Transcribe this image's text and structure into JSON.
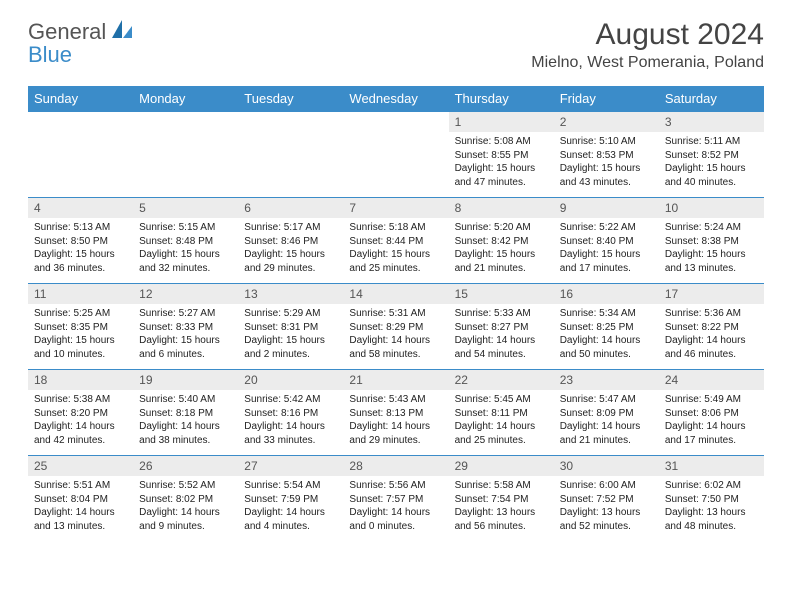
{
  "logo": {
    "text1": "General",
    "text2": "Blue"
  },
  "title": "August 2024",
  "location": "Mielno, West Pomerania, Poland",
  "colors": {
    "header_bg": "#3b8cc9",
    "header_text": "#ffffff",
    "daynum_bg": "#ececec",
    "daynum_text": "#555555",
    "body_text": "#222222",
    "rule": "#3b8cc9",
    "logo_general": "#555555",
    "logo_blue": "#3b8cc9"
  },
  "weekdays": [
    "Sunday",
    "Monday",
    "Tuesday",
    "Wednesday",
    "Thursday",
    "Friday",
    "Saturday"
  ],
  "weeks": [
    [
      {
        "num": "",
        "lines": []
      },
      {
        "num": "",
        "lines": []
      },
      {
        "num": "",
        "lines": []
      },
      {
        "num": "",
        "lines": []
      },
      {
        "num": "1",
        "lines": [
          "Sunrise: 5:08 AM",
          "Sunset: 8:55 PM",
          "Daylight: 15 hours",
          "and 47 minutes."
        ]
      },
      {
        "num": "2",
        "lines": [
          "Sunrise: 5:10 AM",
          "Sunset: 8:53 PM",
          "Daylight: 15 hours",
          "and 43 minutes."
        ]
      },
      {
        "num": "3",
        "lines": [
          "Sunrise: 5:11 AM",
          "Sunset: 8:52 PM",
          "Daylight: 15 hours",
          "and 40 minutes."
        ]
      }
    ],
    [
      {
        "num": "4",
        "lines": [
          "Sunrise: 5:13 AM",
          "Sunset: 8:50 PM",
          "Daylight: 15 hours",
          "and 36 minutes."
        ]
      },
      {
        "num": "5",
        "lines": [
          "Sunrise: 5:15 AM",
          "Sunset: 8:48 PM",
          "Daylight: 15 hours",
          "and 32 minutes."
        ]
      },
      {
        "num": "6",
        "lines": [
          "Sunrise: 5:17 AM",
          "Sunset: 8:46 PM",
          "Daylight: 15 hours",
          "and 29 minutes."
        ]
      },
      {
        "num": "7",
        "lines": [
          "Sunrise: 5:18 AM",
          "Sunset: 8:44 PM",
          "Daylight: 15 hours",
          "and 25 minutes."
        ]
      },
      {
        "num": "8",
        "lines": [
          "Sunrise: 5:20 AM",
          "Sunset: 8:42 PM",
          "Daylight: 15 hours",
          "and 21 minutes."
        ]
      },
      {
        "num": "9",
        "lines": [
          "Sunrise: 5:22 AM",
          "Sunset: 8:40 PM",
          "Daylight: 15 hours",
          "and 17 minutes."
        ]
      },
      {
        "num": "10",
        "lines": [
          "Sunrise: 5:24 AM",
          "Sunset: 8:38 PM",
          "Daylight: 15 hours",
          "and 13 minutes."
        ]
      }
    ],
    [
      {
        "num": "11",
        "lines": [
          "Sunrise: 5:25 AM",
          "Sunset: 8:35 PM",
          "Daylight: 15 hours",
          "and 10 minutes."
        ]
      },
      {
        "num": "12",
        "lines": [
          "Sunrise: 5:27 AM",
          "Sunset: 8:33 PM",
          "Daylight: 15 hours",
          "and 6 minutes."
        ]
      },
      {
        "num": "13",
        "lines": [
          "Sunrise: 5:29 AM",
          "Sunset: 8:31 PM",
          "Daylight: 15 hours",
          "and 2 minutes."
        ]
      },
      {
        "num": "14",
        "lines": [
          "Sunrise: 5:31 AM",
          "Sunset: 8:29 PM",
          "Daylight: 14 hours",
          "and 58 minutes."
        ]
      },
      {
        "num": "15",
        "lines": [
          "Sunrise: 5:33 AM",
          "Sunset: 8:27 PM",
          "Daylight: 14 hours",
          "and 54 minutes."
        ]
      },
      {
        "num": "16",
        "lines": [
          "Sunrise: 5:34 AM",
          "Sunset: 8:25 PM",
          "Daylight: 14 hours",
          "and 50 minutes."
        ]
      },
      {
        "num": "17",
        "lines": [
          "Sunrise: 5:36 AM",
          "Sunset: 8:22 PM",
          "Daylight: 14 hours",
          "and 46 minutes."
        ]
      }
    ],
    [
      {
        "num": "18",
        "lines": [
          "Sunrise: 5:38 AM",
          "Sunset: 8:20 PM",
          "Daylight: 14 hours",
          "and 42 minutes."
        ]
      },
      {
        "num": "19",
        "lines": [
          "Sunrise: 5:40 AM",
          "Sunset: 8:18 PM",
          "Daylight: 14 hours",
          "and 38 minutes."
        ]
      },
      {
        "num": "20",
        "lines": [
          "Sunrise: 5:42 AM",
          "Sunset: 8:16 PM",
          "Daylight: 14 hours",
          "and 33 minutes."
        ]
      },
      {
        "num": "21",
        "lines": [
          "Sunrise: 5:43 AM",
          "Sunset: 8:13 PM",
          "Daylight: 14 hours",
          "and 29 minutes."
        ]
      },
      {
        "num": "22",
        "lines": [
          "Sunrise: 5:45 AM",
          "Sunset: 8:11 PM",
          "Daylight: 14 hours",
          "and 25 minutes."
        ]
      },
      {
        "num": "23",
        "lines": [
          "Sunrise: 5:47 AM",
          "Sunset: 8:09 PM",
          "Daylight: 14 hours",
          "and 21 minutes."
        ]
      },
      {
        "num": "24",
        "lines": [
          "Sunrise: 5:49 AM",
          "Sunset: 8:06 PM",
          "Daylight: 14 hours",
          "and 17 minutes."
        ]
      }
    ],
    [
      {
        "num": "25",
        "lines": [
          "Sunrise: 5:51 AM",
          "Sunset: 8:04 PM",
          "Daylight: 14 hours",
          "and 13 minutes."
        ]
      },
      {
        "num": "26",
        "lines": [
          "Sunrise: 5:52 AM",
          "Sunset: 8:02 PM",
          "Daylight: 14 hours",
          "and 9 minutes."
        ]
      },
      {
        "num": "27",
        "lines": [
          "Sunrise: 5:54 AM",
          "Sunset: 7:59 PM",
          "Daylight: 14 hours",
          "and 4 minutes."
        ]
      },
      {
        "num": "28",
        "lines": [
          "Sunrise: 5:56 AM",
          "Sunset: 7:57 PM",
          "Daylight: 14 hours",
          "and 0 minutes."
        ]
      },
      {
        "num": "29",
        "lines": [
          "Sunrise: 5:58 AM",
          "Sunset: 7:54 PM",
          "Daylight: 13 hours",
          "and 56 minutes."
        ]
      },
      {
        "num": "30",
        "lines": [
          "Sunrise: 6:00 AM",
          "Sunset: 7:52 PM",
          "Daylight: 13 hours",
          "and 52 minutes."
        ]
      },
      {
        "num": "31",
        "lines": [
          "Sunrise: 6:02 AM",
          "Sunset: 7:50 PM",
          "Daylight: 13 hours",
          "and 48 minutes."
        ]
      }
    ]
  ]
}
